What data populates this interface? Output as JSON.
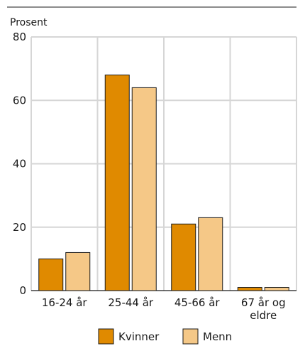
{
  "chart_data": {
    "type": "bar",
    "ylabel": "Prosent",
    "ylim": [
      0,
      80
    ],
    "yticks": [
      0,
      20,
      40,
      60,
      80
    ],
    "categories": [
      [
        "16-24 år"
      ],
      [
        "25-44 år"
      ],
      [
        "45-66 år"
      ],
      [
        "67 år og",
        "eldre"
      ]
    ],
    "series": [
      {
        "name": "Kvinner",
        "color": "#e08a00",
        "values": [
          10,
          68,
          21,
          1
        ]
      },
      {
        "name": "Menn",
        "color": "#f5c887",
        "values": [
          12,
          64,
          23,
          1
        ]
      }
    ],
    "grid": true,
    "legend_position": "bottom"
  }
}
